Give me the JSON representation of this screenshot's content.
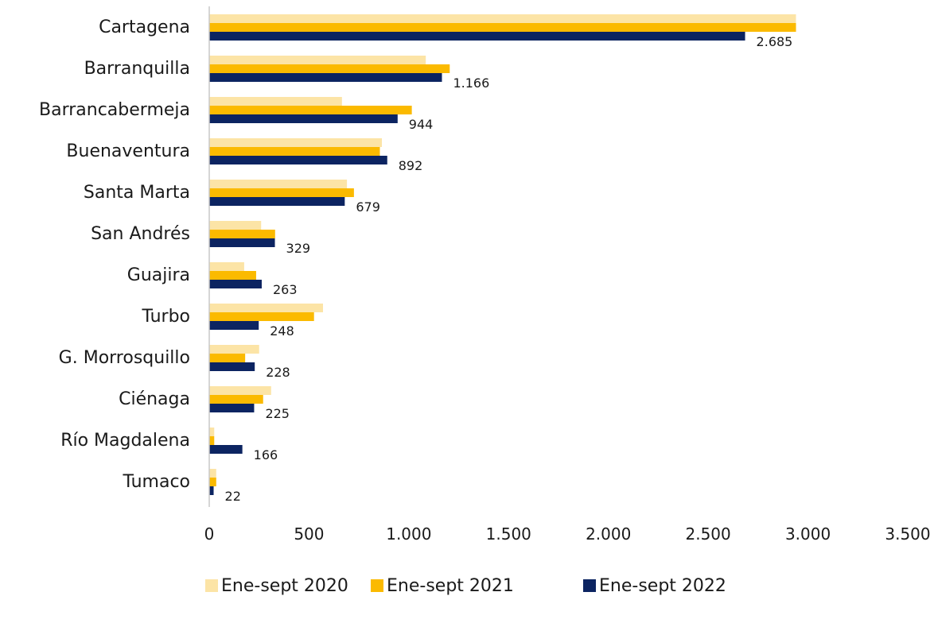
{
  "chart_data": {
    "type": "bar",
    "orientation": "horizontal",
    "categories": [
      "Cartagena",
      "Barranquilla",
      "Barrancabermeja",
      "Buenaventura",
      "Santa Marta",
      "San Andrés",
      "Guajira",
      "Turbo",
      "G. Morrosquillo",
      "Ciénaga",
      "Río Magdalena",
      "Tumaco"
    ],
    "series": [
      {
        "name": "Ene-sept 2020",
        "color": "#FCE4A6",
        "values": [
          2940,
          1085,
          665,
          865,
          690,
          260,
          175,
          570,
          250,
          310,
          25,
          35
        ]
      },
      {
        "name": "Ene-sept 2021",
        "color": "#FBBA00",
        "values": [
          2940,
          1205,
          1015,
          855,
          725,
          330,
          235,
          525,
          180,
          270,
          25,
          35
        ]
      },
      {
        "name": "Ene-sept 2022",
        "color": "#0C2461",
        "values": [
          2685,
          1166,
          944,
          892,
          679,
          329,
          263,
          248,
          228,
          225,
          166,
          22
        ]
      }
    ],
    "data_labels": [
      "2.685",
      "1.166",
      "944",
      "892",
      "679",
      "329",
      "263",
      "248",
      "228",
      "225",
      "166",
      "22"
    ],
    "xlim": [
      0,
      3500
    ],
    "xticks": [
      0,
      500,
      1000,
      1500,
      2000,
      2500,
      3000,
      3500
    ],
    "xtick_labels": [
      "0",
      "500",
      "1.000",
      "1.500",
      "2.000",
      "2.500",
      "3.000",
      "3.500"
    ],
    "grid": false,
    "legend_position": "bottom"
  }
}
